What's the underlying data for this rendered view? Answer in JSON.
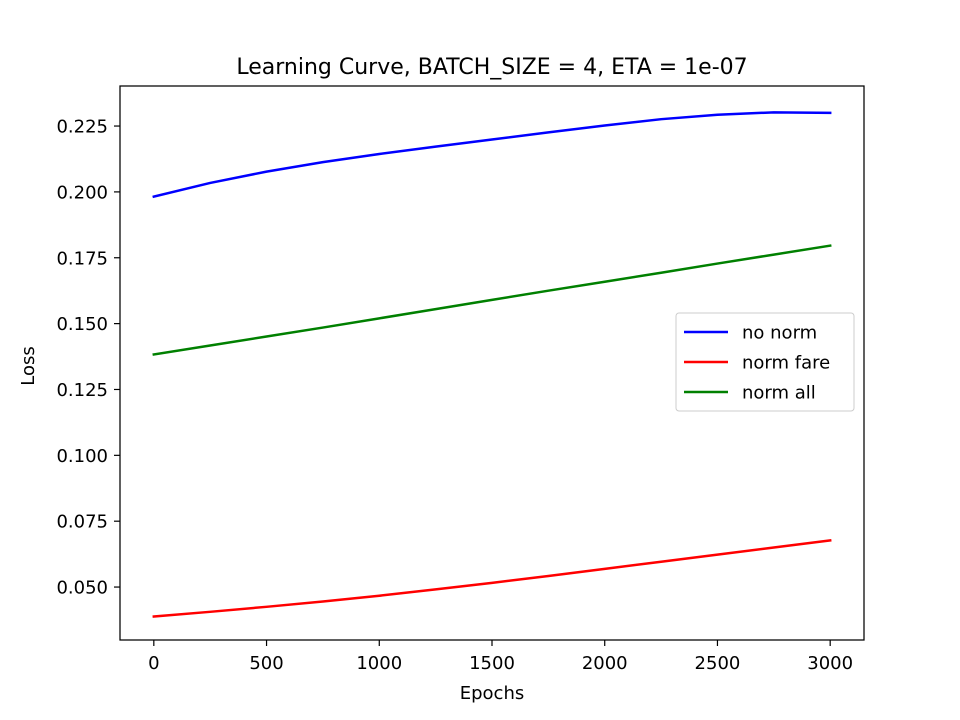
{
  "chart_data": {
    "type": "line",
    "title": "Learning Curve, BATCH_SIZE = 4, ETA = 1e-07",
    "xlabel": "Epochs",
    "ylabel": "Loss",
    "xlim": [
      -150,
      3150
    ],
    "ylim": [
      0.0299,
      0.2402
    ],
    "xticks": [
      0,
      500,
      1000,
      1500,
      2000,
      2500,
      3000
    ],
    "xtick_labels": [
      "0",
      "500",
      "1000",
      "1500",
      "2000",
      "2500",
      "3000"
    ],
    "yticks": [
      0.05,
      0.075,
      0.1,
      0.125,
      0.15,
      0.175,
      0.2,
      0.225
    ],
    "ytick_labels": [
      "0.050",
      "0.075",
      "0.100",
      "0.125",
      "0.150",
      "0.175",
      "0.200",
      "0.225"
    ],
    "grid": false,
    "legend_position": "center-right",
    "series": [
      {
        "name": "no norm",
        "color": "#0000ff",
        "x": [
          0,
          250,
          500,
          750,
          1000,
          1250,
          1500,
          1750,
          2000,
          2250,
          2500,
          2750,
          3000
        ],
        "y": [
          0.1982,
          0.2034,
          0.2077,
          0.2113,
          0.2144,
          0.2172,
          0.2199,
          0.2226,
          0.2252,
          0.2276,
          0.2293,
          0.2302,
          0.23
        ]
      },
      {
        "name": "norm fare",
        "color": "#ff0000",
        "x": [
          0,
          250,
          500,
          750,
          1000,
          1250,
          1500,
          1750,
          2000,
          2250,
          2500,
          2750,
          3000
        ],
        "y": [
          0.0388,
          0.0406,
          0.0425,
          0.0445,
          0.0467,
          0.0491,
          0.0516,
          0.0542,
          0.0569,
          0.0596,
          0.0623,
          0.065,
          0.0677
        ]
      },
      {
        "name": "norm all",
        "color": "#008000",
        "x": [
          0,
          250,
          500,
          750,
          1000,
          1250,
          1500,
          1750,
          2000,
          2250,
          2500,
          2750,
          3000
        ],
        "y": [
          0.1383,
          0.1417,
          0.1451,
          0.1485,
          0.152,
          0.1555,
          0.159,
          0.1625,
          0.1659,
          0.1693,
          0.1728,
          0.1762,
          0.1796
        ]
      }
    ]
  }
}
